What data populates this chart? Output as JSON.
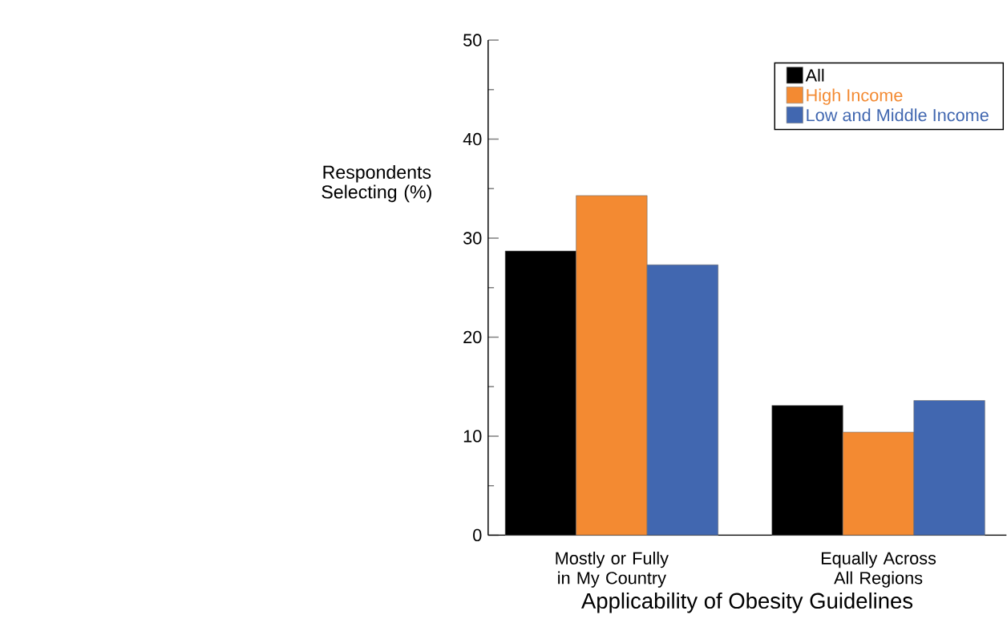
{
  "chart_data": {
    "type": "bar",
    "xlabel": "Applicability of Obesity Guidelines",
    "ylabel": "Respondents Selecting (%)",
    "categories": [
      "Mostly or Fully in My Country",
      "Equally Across All Regions"
    ],
    "series": [
      {
        "name": "All",
        "color": "#000000",
        "values": [
          28.7,
          13.1
        ]
      },
      {
        "name": "High Income",
        "color": "#f38a32",
        "values": [
          34.3,
          10.4
        ]
      },
      {
        "name": "Low and Middle Income",
        "color": "#4167b0",
        "values": [
          27.3,
          13.6
        ]
      }
    ],
    "ylim": [
      0,
      50
    ],
    "yticks": [
      0,
      10,
      20,
      30,
      40,
      50
    ],
    "grid": false,
    "legend": "top right"
  }
}
